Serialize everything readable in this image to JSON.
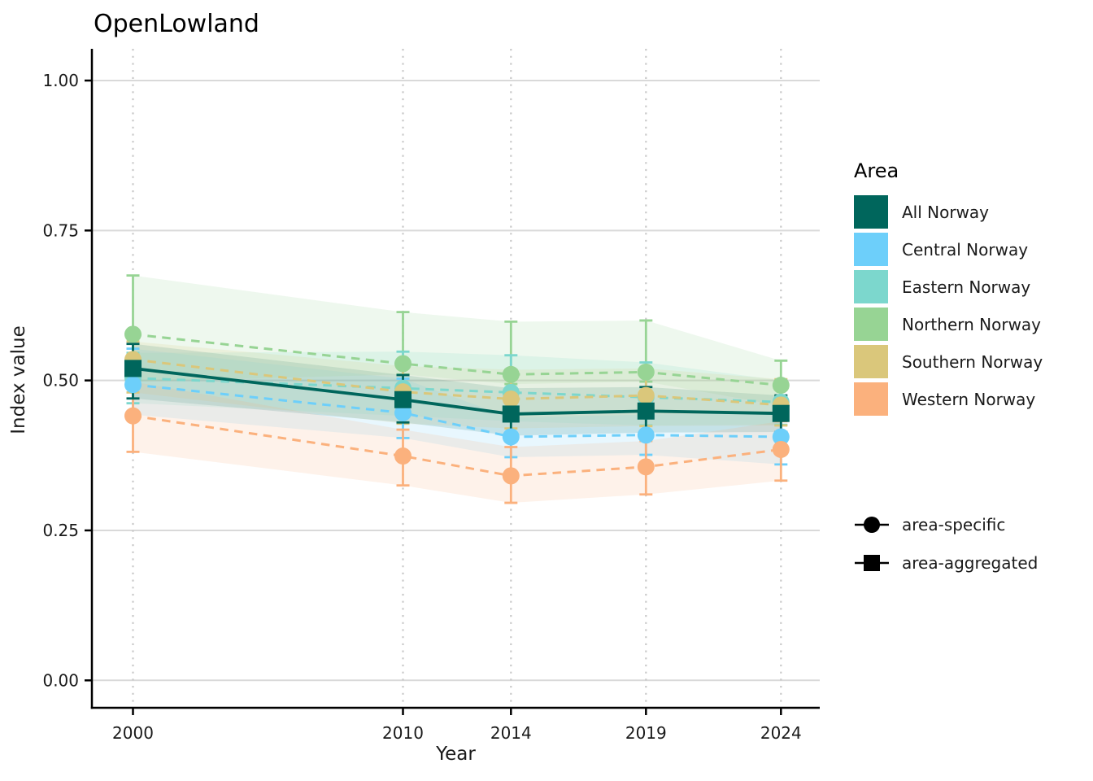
{
  "title": "OpenLowland",
  "axes": {
    "x_label": "Year",
    "y_label": "Index value",
    "x_ticks": [
      2000,
      2010,
      2014,
      2019,
      2024
    ],
    "y_ticks": [
      "0.00",
      "0.25",
      "0.50",
      "0.75",
      "1.00"
    ]
  },
  "legend": {
    "title": "Area",
    "shape_items": [
      {
        "label": "area-specific",
        "shape": "circle"
      },
      {
        "label": "area-aggregated",
        "shape": "square"
      }
    ]
  },
  "colors": {
    "grid_major": "#d9d9d9",
    "grid_dotted": "#c9c9c9",
    "axis": "#000000",
    "text": "#1a1a1a"
  },
  "chart_data": {
    "type": "line",
    "title": "OpenLowland",
    "xlabel": "Year",
    "ylabel": "Index value",
    "x": [
      2000,
      2010,
      2014,
      2019,
      2024
    ],
    "ylim": [
      0,
      1.05
    ],
    "grid": true,
    "legend_position": "right",
    "series": [
      {
        "name": "All Norway",
        "role": "area-aggregated",
        "marker": "square",
        "line": "solid",
        "color": "#00665c",
        "values": [
          0.52,
          0.468,
          0.444,
          0.449,
          0.445
        ],
        "lo": [
          0.47,
          0.43,
          0.408,
          0.413,
          0.414
        ],
        "hi": [
          0.561,
          0.509,
          0.487,
          0.489,
          0.475
        ]
      },
      {
        "name": "Central Norway",
        "role": "area-specific",
        "marker": "circle",
        "line": "dashed",
        "color": "#6dcffa",
        "values": [
          0.493,
          0.446,
          0.406,
          0.409,
          0.406
        ],
        "lo": [
          0.443,
          0.404,
          0.372,
          0.376,
          0.36
        ],
        "hi": [
          0.553,
          0.503,
          0.438,
          0.443,
          0.446
        ]
      },
      {
        "name": "Eastern Norway",
        "role": "area-specific",
        "marker": "circle",
        "line": "dashed",
        "color": "#7cd7cd",
        "values": [
          0.504,
          0.487,
          0.48,
          0.472,
          0.464
        ],
        "lo": [
          0.462,
          0.441,
          0.432,
          0.425,
          0.426
        ],
        "hi": [
          0.546,
          0.548,
          0.542,
          0.53,
          0.5
        ]
      },
      {
        "name": "Northern Norway",
        "role": "area-specific",
        "marker": "circle",
        "line": "dashed",
        "color": "#97d494",
        "values": [
          0.577,
          0.528,
          0.51,
          0.514,
          0.492
        ],
        "lo": [
          0.498,
          0.51,
          0.494,
          0.498,
          0.458
        ],
        "hi": [
          0.675,
          0.614,
          0.598,
          0.6,
          0.533
        ]
      },
      {
        "name": "Southern Norway",
        "role": "area-specific",
        "marker": "circle",
        "line": "dashed",
        "color": "#dac77b",
        "values": [
          0.535,
          0.481,
          0.469,
          0.475,
          0.459
        ],
        "lo": [
          0.48,
          0.428,
          0.42,
          0.424,
          0.425
        ],
        "hi": [
          0.565,
          0.524,
          0.518,
          0.52,
          0.502
        ]
      },
      {
        "name": "Western Norway",
        "role": "area-specific",
        "marker": "circle",
        "line": "dashed",
        "color": "#fbb17d",
        "values": [
          0.441,
          0.374,
          0.341,
          0.356,
          0.385
        ],
        "lo": [
          0.381,
          0.325,
          0.296,
          0.31,
          0.333
        ],
        "hi": [
          0.498,
          0.418,
          0.389,
          0.399,
          0.432
        ]
      }
    ]
  }
}
